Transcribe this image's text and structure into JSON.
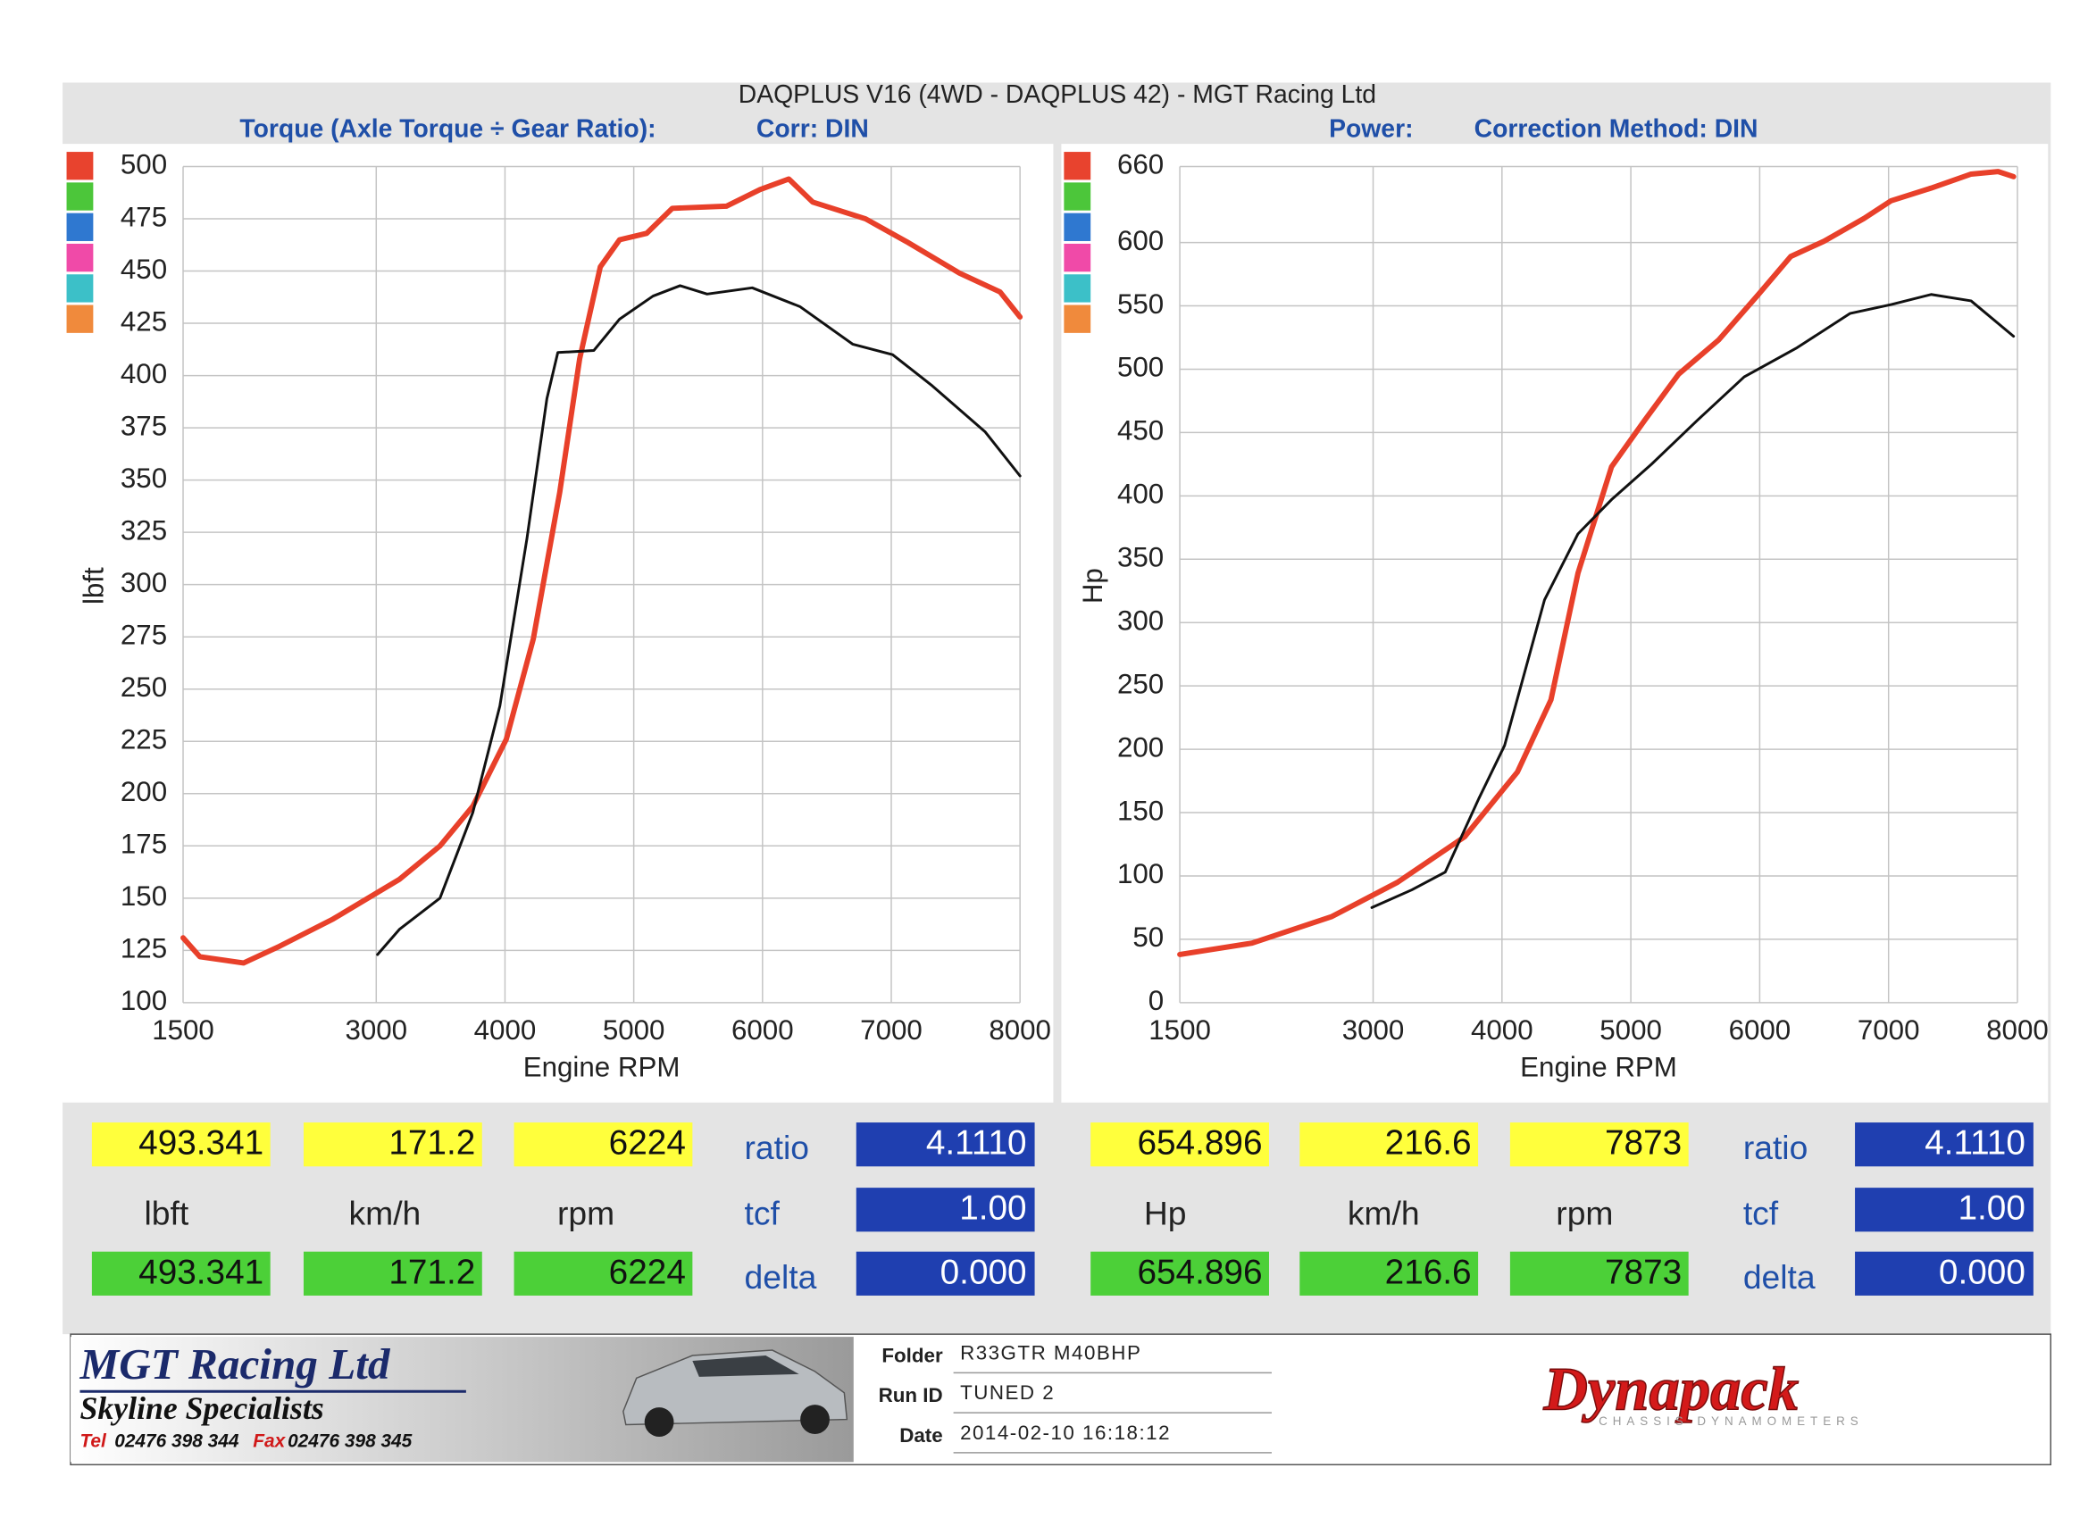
{
  "header": {
    "title": "DAQPLUS V16 (4WD - DAQPLUS 42) - MGT Racing Ltd"
  },
  "chart_data": [
    {
      "type": "line",
      "title": "Torque (Axle Torque ÷ Gear Ratio):",
      "subtitle": "Corr: DIN",
      "x_label": "Engine RPM",
      "y_label": "lbft",
      "xlim": [
        1500,
        8000
      ],
      "xticks": [
        1500,
        3000,
        4000,
        5000,
        6000,
        7000,
        8000
      ],
      "ylim": [
        100,
        500
      ],
      "yticks": [
        100,
        125,
        150,
        175,
        200,
        225,
        250,
        275,
        300,
        325,
        350,
        375,
        400,
        425,
        450,
        475,
        500
      ],
      "grid": true,
      "series": [
        {
          "color": "#e8402a",
          "x": [
            1500,
            1630,
            1970,
            2250,
            2665,
            3180,
            3495,
            3750,
            4010,
            4220,
            4425,
            4580,
            4740,
            4890,
            5100,
            5300,
            5720,
            5980,
            6205,
            6390,
            6800,
            7120,
            7530,
            7845,
            8000
          ],
          "values": [
            131,
            122,
            119,
            127,
            140,
            159,
            175,
            194,
            226,
            274,
            344,
            408,
            452,
            465,
            468,
            480,
            481,
            489,
            494,
            483,
            475,
            464,
            449,
            440,
            428
          ]
        },
        {
          "color": "#111111",
          "x": [
            3010,
            3180,
            3495,
            3750,
            3960,
            4170,
            4325,
            4410,
            4690,
            4890,
            5150,
            5360,
            5570,
            5920,
            6290,
            6700,
            7010,
            7320,
            7730,
            8000
          ],
          "values": [
            123,
            135,
            150,
            191,
            242,
            322,
            389,
            411,
            412,
            427,
            438,
            443,
            439,
            442,
            433,
            415,
            410,
            395,
            373,
            352
          ]
        }
      ]
    },
    {
      "type": "line",
      "title": "Power:",
      "subtitle": "Correction Method: DIN",
      "x_label": "Engine RPM",
      "y_label": "Hp",
      "xlim": [
        1500,
        8000
      ],
      "xticks": [
        1500,
        3000,
        4000,
        5000,
        6000,
        7000,
        8000
      ],
      "ylim": [
        0,
        660
      ],
      "yticks": [
        0,
        50,
        100,
        150,
        200,
        250,
        300,
        350,
        400,
        450,
        500,
        550,
        600,
        660
      ],
      "grid": true,
      "series": [
        {
          "color": "#e8402a",
          "x": [
            1500,
            2060,
            2680,
            3190,
            3710,
            4120,
            4380,
            4590,
            4850,
            5110,
            5370,
            5680,
            5990,
            6240,
            6500,
            6810,
            7020,
            7330,
            7640,
            7850,
            7970
          ],
          "values": [
            38,
            47,
            68,
            95,
            131,
            182,
            239,
            339,
            423,
            460,
            496,
            523,
            559,
            589,
            601,
            619,
            633,
            643,
            654,
            656,
            652
          ]
        },
        {
          "color": "#111111",
          "x": [
            2990,
            3300,
            3560,
            3820,
            4020,
            4330,
            4590,
            4850,
            5160,
            5520,
            5880,
            6290,
            6700,
            7020,
            7330,
            7640,
            7970
          ],
          "values": [
            75,
            89,
            103,
            161,
            203,
            318,
            370,
            397,
            425,
            460,
            494,
            517,
            544,
            551,
            559,
            554,
            526
          ]
        }
      ]
    }
  ],
  "readouts": [
    {
      "peak": [
        "493.341",
        "171.2",
        "6224"
      ],
      "units": [
        "lbft",
        "km/h",
        "rpm"
      ],
      "current": [
        "493.341",
        "171.2",
        "6224"
      ],
      "labels": [
        "ratio",
        "tcf",
        "delta"
      ],
      "factors": [
        "4.1110",
        "1.00",
        "0.000"
      ]
    },
    {
      "peak": [
        "654.896",
        "216.6",
        "7873"
      ],
      "units": [
        "Hp",
        "km/h",
        "rpm"
      ],
      "current": [
        "654.896",
        "216.6",
        "7873"
      ],
      "labels": [
        "ratio",
        "tcf",
        "delta"
      ],
      "factors": [
        "4.1110",
        "1.00",
        "0.000"
      ]
    }
  ],
  "footer": {
    "company": "MGT Racing Ltd",
    "tagline": "Skyline Specialists",
    "tel_label": "Tel",
    "tel": "02476 398 344",
    "fax_label": "Fax",
    "fax": "02476 398 345",
    "fields": [
      {
        "label": "Folder",
        "value": "R33GTR M40BHP"
      },
      {
        "label": "Run ID",
        "value": "TUNED 2"
      },
      {
        "label": "Date",
        "value": "2014-02-10 16:18:12"
      }
    ],
    "brand": "Dynapack",
    "brand_sub": "CHASSIS DYNAMOMETERS"
  }
}
